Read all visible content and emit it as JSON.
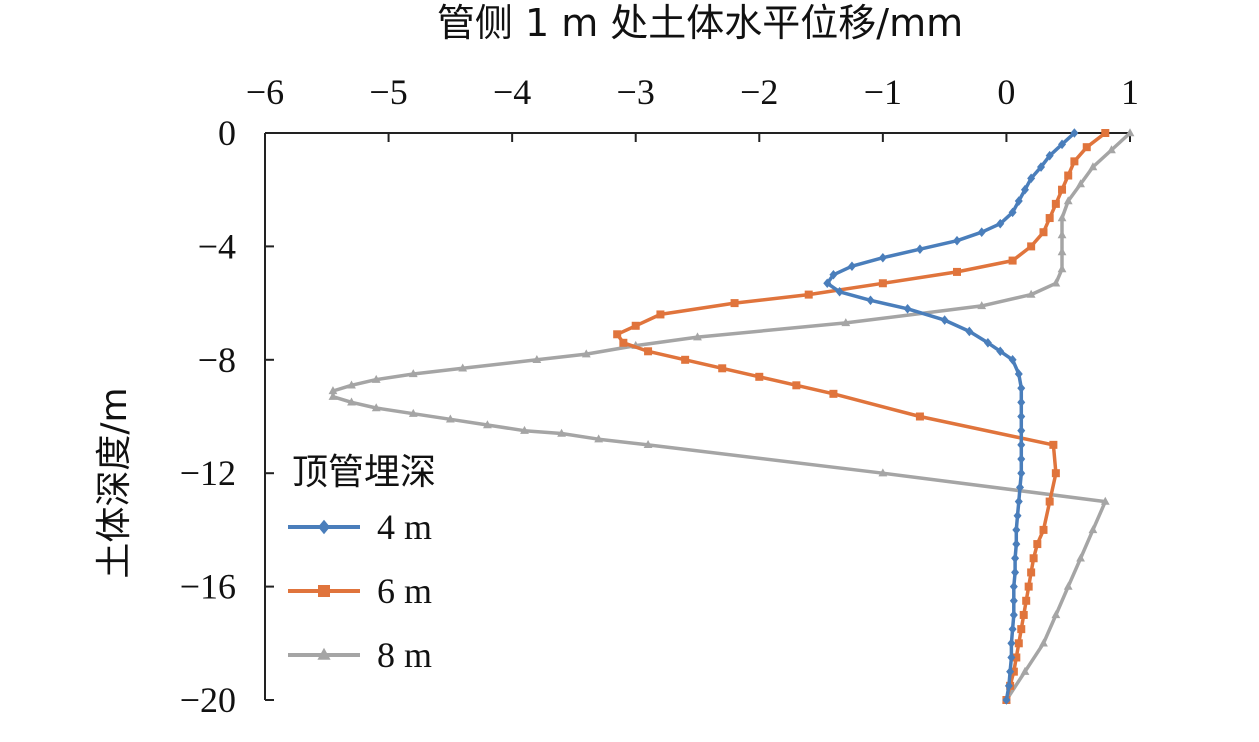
{
  "chart_data": {
    "type": "line",
    "title": "",
    "xlabel": "管侧 1 m 处土体水平位移/mm",
    "ylabel": "土体深度/m",
    "xlim": [
      -6,
      1
    ],
    "ylim": [
      -20,
      0
    ],
    "x_ticks": [
      "−6",
      "−5",
      "−4",
      "−3",
      "−2",
      "−1",
      "0",
      "1"
    ],
    "y_ticks": [
      "0",
      "−4",
      "−8",
      "−12",
      "−16",
      "−20"
    ],
    "x_axis_position": "top",
    "grid": false,
    "legend": {
      "title": "顶管埋深",
      "placement": "lower-left"
    },
    "series": [
      {
        "name": "4 m",
        "color": "#4a7ebb",
        "marker": "diamond",
        "points": [
          [
            0.55,
            0
          ],
          [
            0.45,
            -0.4
          ],
          [
            0.35,
            -0.8
          ],
          [
            0.28,
            -1.2
          ],
          [
            0.2,
            -1.6
          ],
          [
            0.15,
            -2.0
          ],
          [
            0.1,
            -2.4
          ],
          [
            0.05,
            -2.8
          ],
          [
            -0.05,
            -3.2
          ],
          [
            -0.2,
            -3.5
          ],
          [
            -0.4,
            -3.8
          ],
          [
            -0.7,
            -4.1
          ],
          [
            -1.0,
            -4.4
          ],
          [
            -1.25,
            -4.7
          ],
          [
            -1.4,
            -5.0
          ],
          [
            -1.45,
            -5.3
          ],
          [
            -1.35,
            -5.6
          ],
          [
            -1.1,
            -5.9
          ],
          [
            -0.8,
            -6.2
          ],
          [
            -0.5,
            -6.6
          ],
          [
            -0.3,
            -7.0
          ],
          [
            -0.15,
            -7.4
          ],
          [
            -0.05,
            -7.7
          ],
          [
            0.05,
            -8.0
          ],
          [
            0.1,
            -8.5
          ],
          [
            0.12,
            -9.0
          ],
          [
            0.12,
            -9.5
          ],
          [
            0.12,
            -10.0
          ],
          [
            0.12,
            -10.5
          ],
          [
            0.12,
            -11.0
          ],
          [
            0.12,
            -11.5
          ],
          [
            0.12,
            -12.0
          ],
          [
            0.11,
            -12.5
          ],
          [
            0.1,
            -13.0
          ],
          [
            0.09,
            -13.5
          ],
          [
            0.08,
            -14.0
          ],
          [
            0.08,
            -14.5
          ],
          [
            0.07,
            -15.0
          ],
          [
            0.07,
            -15.5
          ],
          [
            0.06,
            -16.0
          ],
          [
            0.06,
            -16.5
          ],
          [
            0.06,
            -17.0
          ],
          [
            0.05,
            -17.5
          ],
          [
            0.04,
            -18.0
          ],
          [
            0.04,
            -18.5
          ],
          [
            0.03,
            -19.0
          ],
          [
            0.02,
            -19.5
          ],
          [
            0.0,
            -20.0
          ]
        ]
      },
      {
        "name": "6 m",
        "color": "#e0743c",
        "marker": "square",
        "points": [
          [
            0.8,
            0
          ],
          [
            0.65,
            -0.5
          ],
          [
            0.55,
            -1.0
          ],
          [
            0.5,
            -1.5
          ],
          [
            0.45,
            -2.0
          ],
          [
            0.4,
            -2.5
          ],
          [
            0.35,
            -3.0
          ],
          [
            0.3,
            -3.5
          ],
          [
            0.2,
            -4.0
          ],
          [
            0.05,
            -4.5
          ],
          [
            -0.4,
            -4.9
          ],
          [
            -1.0,
            -5.3
          ],
          [
            -1.6,
            -5.7
          ],
          [
            -2.2,
            -6.0
          ],
          [
            -2.8,
            -6.4
          ],
          [
            -3.0,
            -6.8
          ],
          [
            -3.15,
            -7.1
          ],
          [
            -3.1,
            -7.4
          ],
          [
            -2.9,
            -7.7
          ],
          [
            -2.6,
            -8.0
          ],
          [
            -2.3,
            -8.3
          ],
          [
            -2.0,
            -8.6
          ],
          [
            -1.7,
            -8.9
          ],
          [
            -1.4,
            -9.2
          ],
          [
            -0.7,
            -10.0
          ],
          [
            0.38,
            -11.0
          ],
          [
            0.4,
            -12.0
          ],
          [
            0.35,
            -13.0
          ],
          [
            0.3,
            -14.0
          ],
          [
            0.25,
            -14.5
          ],
          [
            0.22,
            -15.0
          ],
          [
            0.2,
            -15.5
          ],
          [
            0.18,
            -16.0
          ],
          [
            0.16,
            -16.5
          ],
          [
            0.14,
            -17.0
          ],
          [
            0.12,
            -17.5
          ],
          [
            0.1,
            -18.0
          ],
          [
            0.08,
            -18.5
          ],
          [
            0.06,
            -19.0
          ],
          [
            0.03,
            -19.5
          ],
          [
            0.0,
            -20.0
          ]
        ]
      },
      {
        "name": "8 m",
        "color": "#a5a5a5",
        "marker": "triangle",
        "points": [
          [
            1.0,
            0
          ],
          [
            0.85,
            -0.6
          ],
          [
            0.7,
            -1.2
          ],
          [
            0.6,
            -1.8
          ],
          [
            0.5,
            -2.4
          ],
          [
            0.45,
            -3.0
          ],
          [
            0.45,
            -3.6
          ],
          [
            0.45,
            -4.2
          ],
          [
            0.45,
            -4.8
          ],
          [
            0.4,
            -5.3
          ],
          [
            0.2,
            -5.7
          ],
          [
            -0.2,
            -6.1
          ],
          [
            -1.3,
            -6.7
          ],
          [
            -2.5,
            -7.2
          ],
          [
            -3.0,
            -7.5
          ],
          [
            -3.4,
            -7.8
          ],
          [
            -3.8,
            -8.0
          ],
          [
            -4.4,
            -8.3
          ],
          [
            -4.8,
            -8.5
          ],
          [
            -5.1,
            -8.7
          ],
          [
            -5.3,
            -8.9
          ],
          [
            -5.45,
            -9.1
          ],
          [
            -5.45,
            -9.3
          ],
          [
            -5.3,
            -9.5
          ],
          [
            -5.1,
            -9.7
          ],
          [
            -4.8,
            -9.9
          ],
          [
            -4.5,
            -10.1
          ],
          [
            -4.2,
            -10.3
          ],
          [
            -3.9,
            -10.5
          ],
          [
            -3.6,
            -10.6
          ],
          [
            -3.3,
            -10.8
          ],
          [
            -2.9,
            -11.0
          ],
          [
            -1.0,
            -12.0
          ],
          [
            0.8,
            -13.0
          ],
          [
            0.7,
            -14.0
          ],
          [
            0.6,
            -15.0
          ],
          [
            0.5,
            -16.0
          ],
          [
            0.4,
            -17.0
          ],
          [
            0.3,
            -18.0
          ],
          [
            0.15,
            -19.0
          ],
          [
            0.0,
            -20.0
          ]
        ]
      }
    ]
  }
}
